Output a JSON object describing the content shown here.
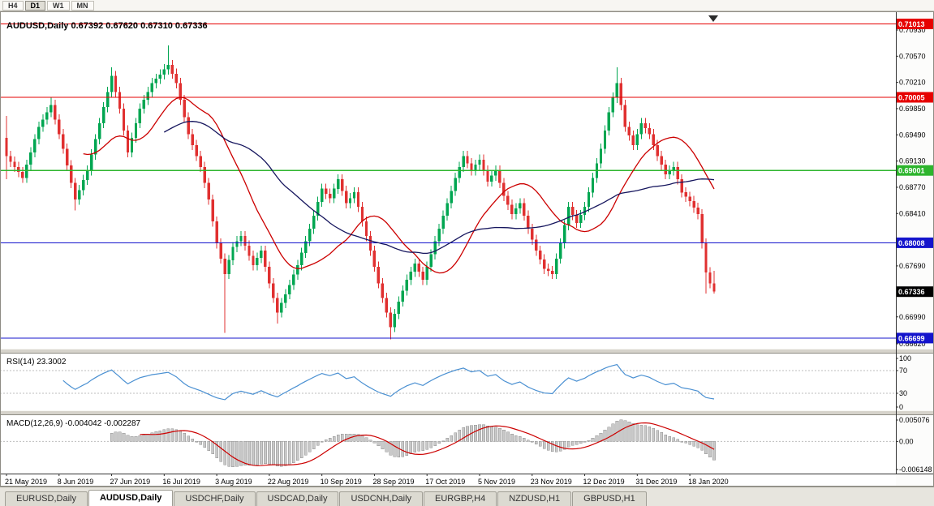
{
  "window": {
    "bg": "#ecebe5"
  },
  "toolbar": {
    "periods": [
      {
        "label": "H4",
        "active": false
      },
      {
        "label": "D1",
        "active": true
      },
      {
        "label": "W1",
        "active": false
      },
      {
        "label": "MN",
        "active": false
      }
    ]
  },
  "chart": {
    "title": "AUDUSD,Daily 0.67392 0.67620 0.67310 0.67336",
    "symbol": "AUDUSD",
    "timeframe": "Daily",
    "open": "0.67392",
    "high": "0.67620",
    "low": "0.67310",
    "close": "0.67336"
  },
  "chart_data": {
    "type": "candlestick",
    "title": "AUDUSD,Daily",
    "ylim": [
      0.66553,
      0.71186
    ],
    "price_axis": {
      "ticks": [
        "0.70930",
        "0.70570",
        "0.70210",
        "0.69850",
        "0.69490",
        "0.69130",
        "0.68770",
        "0.68410",
        "0.67690",
        "0.66990",
        "0.66620"
      ]
    },
    "levels": [
      {
        "label": "0.71013",
        "value": 0.71013,
        "color": "#e60000"
      },
      {
        "label": "0.70005",
        "value": 0.70005,
        "color": "#e60000"
      },
      {
        "label": "0.69001",
        "value": 0.69001,
        "color": "#2db52d"
      },
      {
        "label": "0.68008",
        "value": 0.68008,
        "color": "#1414cc"
      },
      {
        "label": "0.66699",
        "value": 0.66699,
        "color": "#1414cc"
      }
    ],
    "current_price": {
      "label": "0.67336",
      "value": 0.67336,
      "color": "#000000"
    },
    "colors": {
      "bull": "#00a651",
      "bear": "#e03030",
      "ma_fast": "#cc0000",
      "ma_slow": "#16165e",
      "rsi": "#4a90d2",
      "macd_hist": "#c9c9c9",
      "macd_hist_border": "#8f8f8f",
      "macd_signal": "#cc0000",
      "level_text": "#ffffff"
    },
    "moving_averages": [
      {
        "period": 20,
        "color_key": "ma_fast"
      },
      {
        "period": 40,
        "color_key": "ma_slow"
      }
    ],
    "candles": {
      "first_open": 0.6945,
      "default_wick": 0.0007,
      "closes": [
        0.692,
        0.6912,
        0.6905,
        0.6898,
        0.689,
        0.6908,
        0.6925,
        0.6943,
        0.696,
        0.697,
        0.698,
        0.699,
        0.697,
        0.695,
        0.693,
        0.6907,
        0.6883,
        0.686,
        0.6873,
        0.6887,
        0.69,
        0.6922,
        0.6943,
        0.6965,
        0.6987,
        0.7008,
        0.703,
        0.7008,
        0.6985,
        0.6955,
        0.6925,
        0.6945,
        0.6965,
        0.6985,
        0.6997,
        0.7008,
        0.702,
        0.7026,
        0.7032,
        0.7039,
        0.7045,
        0.7033,
        0.702,
        0.6997,
        0.6973,
        0.695,
        0.6935,
        0.692,
        0.6905,
        0.6883,
        0.686,
        0.683,
        0.68,
        0.6779,
        0.6758,
        0.6777,
        0.6795,
        0.6803,
        0.681,
        0.6797,
        0.6783,
        0.677,
        0.678,
        0.679,
        0.6768,
        0.6745,
        0.6725,
        0.6705,
        0.6718,
        0.673,
        0.6743,
        0.6757,
        0.677,
        0.6787,
        0.6803,
        0.682,
        0.6838,
        0.6857,
        0.6875,
        0.6868,
        0.6862,
        0.6875,
        0.6888,
        0.6872,
        0.6855,
        0.6862,
        0.687,
        0.685,
        0.683,
        0.681,
        0.679,
        0.6768,
        0.6745,
        0.6725,
        0.6705,
        0.6685,
        0.6703,
        0.672,
        0.6735,
        0.675,
        0.6761,
        0.6772,
        0.6761,
        0.675,
        0.6768,
        0.6785,
        0.6803,
        0.682,
        0.6838,
        0.6855,
        0.6872,
        0.689,
        0.6905,
        0.692,
        0.691,
        0.69,
        0.6908,
        0.6915,
        0.69,
        0.6885,
        0.6893,
        0.69,
        0.6883,
        0.6865,
        0.6853,
        0.684,
        0.6848,
        0.6855,
        0.6838,
        0.682,
        0.6805,
        0.679,
        0.6778,
        0.6765,
        0.6762,
        0.6758,
        0.6779,
        0.68,
        0.6825,
        0.685,
        0.6839,
        0.6828,
        0.6839,
        0.685,
        0.687,
        0.689,
        0.691,
        0.693,
        0.6955,
        0.698,
        0.7,
        0.702,
        0.699,
        0.696,
        0.6948,
        0.6935,
        0.695,
        0.6965,
        0.6958,
        0.695,
        0.6935,
        0.692,
        0.6908,
        0.6895,
        0.69,
        0.6905,
        0.6888,
        0.687,
        0.6864,
        0.6858,
        0.6849,
        0.684,
        0.68,
        0.676,
        0.6745,
        0.67336
      ],
      "low_overrides": {
        "0": 0.6888,
        "17": 0.6845,
        "54": 0.6677,
        "67": 0.669,
        "95": 0.6668,
        "173": 0.6731,
        "175": 0.6731
      },
      "high_overrides": {
        "0": 0.6975,
        "11": 0.7,
        "26": 0.7042,
        "40": 0.7072,
        "151": 0.7042,
        "175": 0.6762
      }
    },
    "x_axis": {
      "labels": [
        {
          "text": "21 May 2019",
          "index": 0
        },
        {
          "text": "8 Jun 2019",
          "index": 13
        },
        {
          "text": "27 Jun 2019",
          "index": 26
        },
        {
          "text": "16 Jul 2019",
          "index": 39
        },
        {
          "text": "3 Aug 2019",
          "index": 52
        },
        {
          "text": "22 Aug 2019",
          "index": 65
        },
        {
          "text": "10 Sep 2019",
          "index": 78
        },
        {
          "text": "28 Sep 2019",
          "index": 91
        },
        {
          "text": "17 Oct 2019",
          "index": 104
        },
        {
          "text": "5 Nov 2019",
          "index": 117
        },
        {
          "text": "23 Nov 2019",
          "index": 130
        },
        {
          "text": "12 Dec 2019",
          "index": 143
        },
        {
          "text": "31 Dec 2019",
          "index": 156
        },
        {
          "text": "18 Jan 2020",
          "index": 169
        }
      ]
    },
    "rsi": {
      "label": "RSI(14) 23.3002",
      "period": 14,
      "value": 23.3002,
      "levels": [
        70,
        30
      ],
      "scale": [
        "100",
        "70",
        "30",
        "0"
      ],
      "range": [
        0,
        100
      ]
    },
    "macd": {
      "label": "MACD(12,26,9) -0.004042 -0.002287",
      "fast": 12,
      "slow": 26,
      "signal": 9,
      "value": -0.004042,
      "signal_value": -0.002287,
      "scale_top": "0.005076",
      "scale_zero": "0.00",
      "scale_bottom": "-0.006148",
      "range": [
        -0.0066,
        0.0054
      ]
    }
  },
  "tabs": {
    "items": [
      {
        "label": "EURUSD,Daily",
        "active": false
      },
      {
        "label": "AUDUSD,Daily",
        "active": true
      },
      {
        "label": "USDCHF,Daily",
        "active": false
      },
      {
        "label": "USDCAD,Daily",
        "active": false
      },
      {
        "label": "USDCNH,Daily",
        "active": false
      },
      {
        "label": "EURGBP,H4",
        "active": false
      },
      {
        "label": "NZDUSD,H1",
        "active": false
      },
      {
        "label": "GBPUSD,H1",
        "active": false
      }
    ]
  }
}
